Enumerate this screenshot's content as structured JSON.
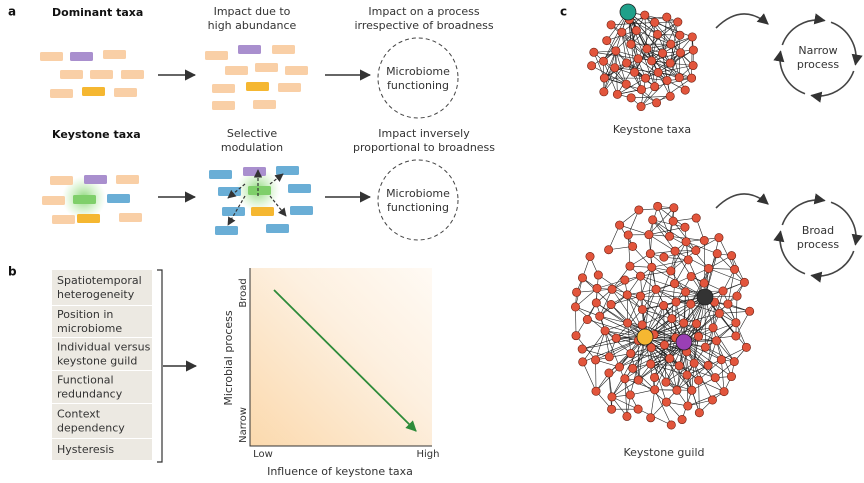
{
  "panel_a": {
    "label": "a",
    "rows": [
      {
        "title": "Dominant taxa",
        "step2": [
          "Impact due to",
          "high abundance"
        ],
        "step3": [
          "Impact on a process",
          "irrespective of broadness"
        ],
        "circle": [
          "Microbiome",
          "functioning"
        ]
      },
      {
        "title": "Keystone taxa",
        "step2": [
          "Selective",
          "modulation"
        ],
        "step3": [
          "Impact inversely",
          "proportional to broadness"
        ],
        "circle": [
          "Microbiome",
          "functioning"
        ]
      }
    ]
  },
  "panel_b": {
    "label": "b",
    "factors": [
      [
        "Spatiotemporal",
        "heterogeneity"
      ],
      [
        "Position in",
        "microbiome"
      ],
      [
        "Individual versus",
        "keystone guild"
      ],
      [
        "Functional",
        "redundancy"
      ],
      [
        "Context",
        "dependency"
      ],
      [
        "Hysteresis"
      ]
    ],
    "y_axis_label": "Microbial process",
    "y_high": "Broad",
    "y_low": "Narrow",
    "x_low": "Low",
    "x_high": "High",
    "x_axis_label": "Influence of keystone taxa"
  },
  "panel_c": {
    "label": "c",
    "networks": [
      {
        "caption": "Keystone taxa",
        "process": [
          "Narrow",
          "process"
        ]
      },
      {
        "caption": "Keystone guild",
        "process": [
          "Broad",
          "process"
        ]
      }
    ]
  }
}
